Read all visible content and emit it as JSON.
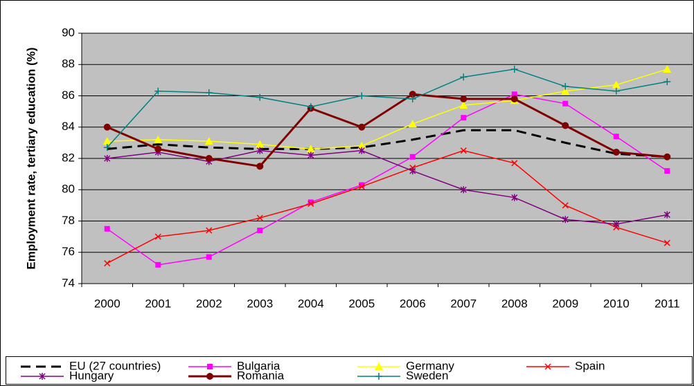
{
  "chart_data": {
    "type": "line",
    "y_label": "Employment rate, tertiary education (%)",
    "categories": [
      "2000",
      "2001",
      "2002",
      "2003",
      "2004",
      "2005",
      "2006",
      "2007",
      "2008",
      "2009",
      "2010",
      "2011"
    ],
    "ylim": [
      74,
      90
    ],
    "yticks": [
      74,
      76,
      78,
      80,
      82,
      84,
      86,
      88,
      90
    ],
    "grid": true,
    "series": [
      {
        "name": "EU (27 countries)",
        "color": "#000000",
        "marker": "none",
        "line_style": "dashed",
        "line_width": 3,
        "values": [
          82.6,
          82.9,
          82.7,
          82.6,
          82.6,
          82.7,
          83.2,
          83.8,
          83.8,
          83.0,
          82.3,
          82.1
        ]
      },
      {
        "name": "Bulgaria",
        "color": "#ff00ff",
        "marker": "square",
        "line_style": "solid",
        "line_width": 1.5,
        "values": [
          77.5,
          75.2,
          75.7,
          77.4,
          79.2,
          80.3,
          82.1,
          84.6,
          86.1,
          85.5,
          83.4,
          81.2
        ]
      },
      {
        "name": "Germany",
        "color": "#ffff00",
        "marker": "triangle",
        "line_style": "solid",
        "line_width": 1.5,
        "values": [
          83.1,
          83.2,
          83.1,
          82.9,
          82.6,
          82.8,
          84.2,
          85.4,
          85.7,
          86.3,
          86.7,
          87.7
        ]
      },
      {
        "name": "Spain",
        "color": "#ff0000",
        "marker": "x",
        "line_style": "solid",
        "line_width": 1.5,
        "values": [
          75.3,
          77.0,
          77.4,
          78.2,
          79.1,
          80.2,
          81.4,
          82.5,
          81.7,
          79.0,
          77.6,
          76.6
        ]
      },
      {
        "name": "Hungary",
        "color": "#800080",
        "marker": "star",
        "line_style": "solid",
        "line_width": 1.5,
        "values": [
          82.0,
          82.4,
          81.8,
          82.5,
          82.2,
          82.5,
          81.2,
          80.0,
          79.5,
          78.1,
          77.8,
          78.4
        ]
      },
      {
        "name": "Romania",
        "color": "#800000",
        "marker": "circle",
        "line_style": "solid",
        "line_width": 3,
        "values": [
          84.0,
          82.6,
          82.0,
          81.5,
          85.2,
          84.0,
          86.1,
          85.8,
          85.8,
          84.1,
          82.4,
          82.1
        ]
      },
      {
        "name": "Sweden",
        "color": "#008080",
        "marker": "plus",
        "line_style": "solid",
        "line_width": 1.5,
        "values": [
          82.7,
          86.3,
          86.2,
          85.9,
          85.3,
          86.0,
          85.8,
          87.2,
          87.7,
          86.6,
          86.3,
          86.9
        ]
      }
    ]
  }
}
